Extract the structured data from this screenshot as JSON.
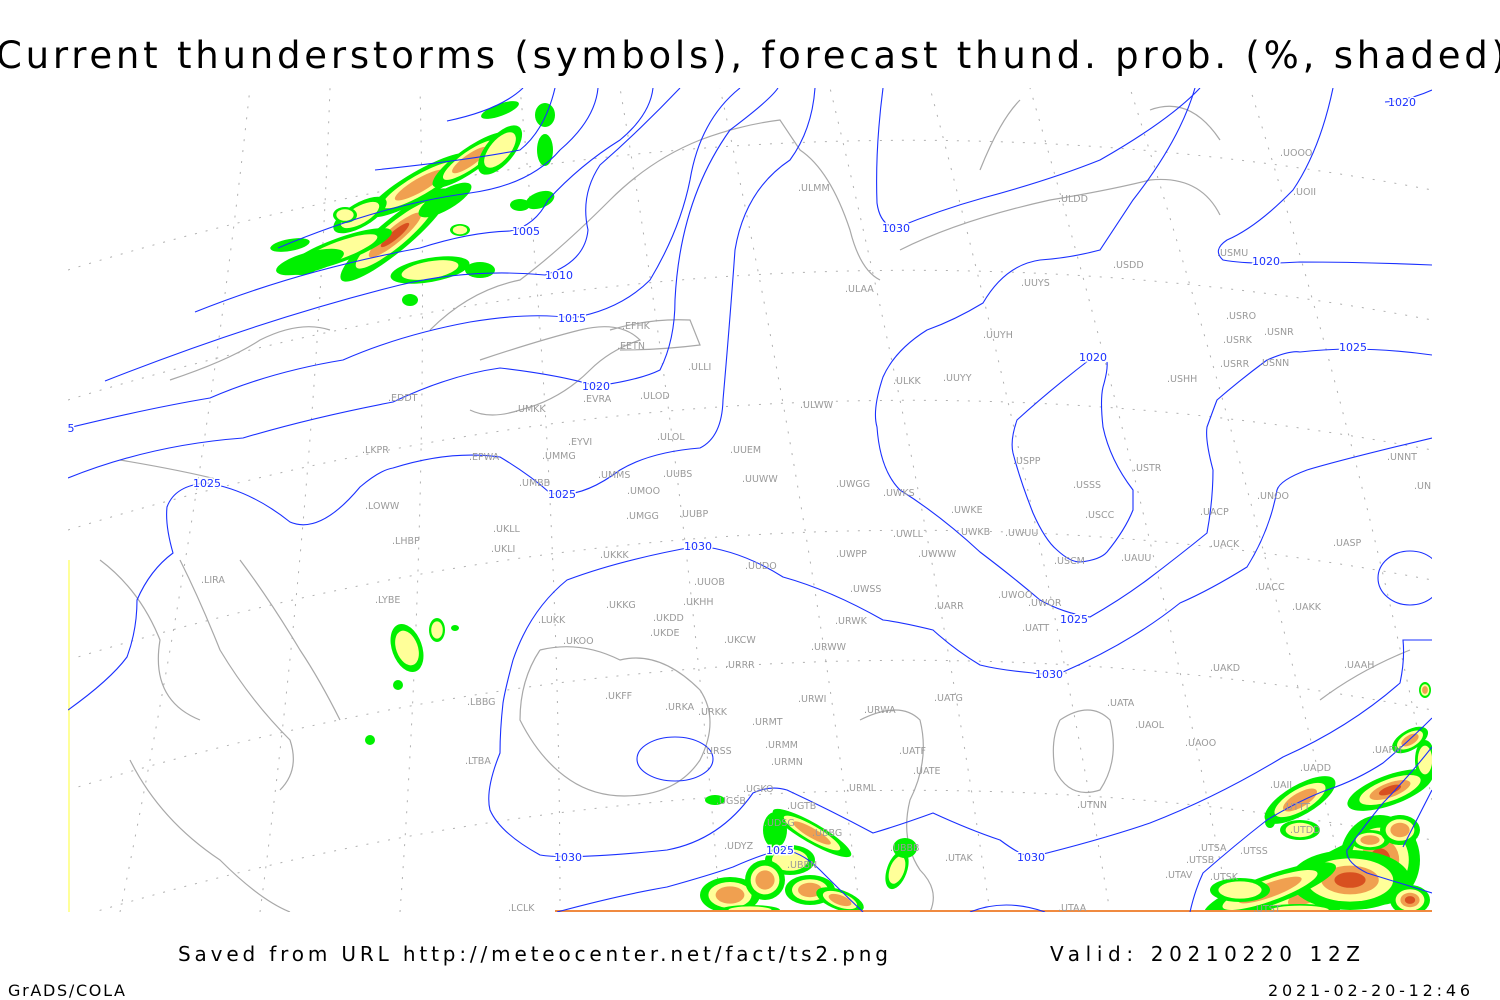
{
  "header": {
    "title": "Current thunderstorms (symbols), forecast thund. prob. (%, shaded)"
  },
  "footer": {
    "source": "Saved from URL http://meteocenter.net/fact/ts2.png",
    "valid": "Valid: 20210220 12Z",
    "software": "GrADS/COLA",
    "timestamp": "2021-02-20-12:46"
  },
  "colors": {
    "isobar": "#1a30ff",
    "coastline": "#a8a8a8",
    "station_label": "#9a9a9a",
    "prob_shading": [
      "#00f000",
      "#ffff99",
      "#f0a050",
      "#d85020"
    ]
  },
  "isobar_labels": [
    "1005",
    "1010",
    "1015",
    "5",
    "1020",
    "1025",
    "1025",
    "1030",
    "1030",
    "1020",
    "1020",
    "1020",
    "1025",
    "1025",
    "1030",
    "1030",
    "1025",
    "1030"
  ],
  "stations": [
    "ULMM",
    "ULDD",
    "USDD",
    "UUYS",
    "ULAA",
    "UUYH",
    "ULKK",
    "UUYY",
    "ULWW",
    "USPP",
    "USSS",
    "USTR",
    "USHH",
    "USRO",
    "USRK",
    "USNR",
    "USRR",
    "USNN",
    "USMU",
    "UOOO",
    "UOII",
    "EFHK",
    "EETN",
    "ULLI",
    "ULOD",
    "UMKK",
    "EVRA",
    "EPWA",
    "LKPR",
    "EDDT",
    "EYVI",
    "UMMG",
    "ULOL",
    "UUEM",
    "UMMS",
    "UMOO",
    "UUBS",
    "UUWW",
    "UMBB",
    "LOWW",
    "UMGG",
    "UUBP",
    "UKLL",
    "UKLI",
    "LHBP",
    "UKKK",
    "UUDO",
    "UUOB",
    "LIRA",
    "LYBE",
    "LUKK",
    "UKKG",
    "UKDD",
    "UKHH",
    "UKDE",
    "UKOO",
    "UKCW",
    "URRR",
    "UKFF",
    "URKA",
    "URKK",
    "URWI",
    "URMT",
    "URSS",
    "URMM",
    "URMN",
    "UGKO",
    "UGSB",
    "UGTB",
    "UDSG",
    "UBBG",
    "UDYZ",
    "UBBN",
    "UBBB",
    "UTAK",
    "URML",
    "UATF",
    "UATE",
    "UATG",
    "URWA",
    "UWGG",
    "UWKS",
    "UWLL",
    "UWKE",
    "UWKB",
    "UWUU",
    "UWWW",
    "UWPP",
    "UWSS",
    "UARR",
    "URWK",
    "URWW",
    "UWOO",
    "UWOR",
    "UATT",
    "USCM",
    "UAUU",
    "USCC",
    "UACP",
    "UACK",
    "UNOO",
    "UASP",
    "UACC",
    "UAKK",
    "UAKD",
    "UAAH",
    "UATA",
    "UAOL",
    "UAOO",
    "UNNT",
    "UNBB",
    "UTNN",
    "UTSA",
    "UTSS",
    "UTSB",
    "UTAV",
    "UTSK",
    "UTST",
    "UTAA",
    "LTBA",
    "LBBG",
    "LCLK",
    "UAFM",
    "UADD",
    "UAII",
    "UTTT",
    "UTDD"
  ]
}
